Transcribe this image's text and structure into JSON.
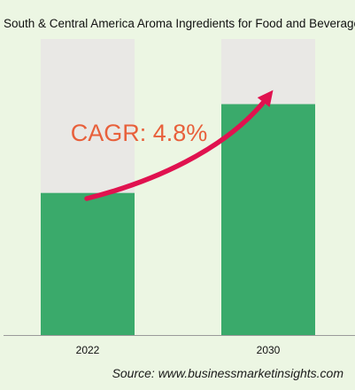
{
  "chart_data": {
    "type": "bar",
    "title": "South & Central America Aroma Ingredients for Food and Beverage",
    "categories": [
      "2022",
      "2030"
    ],
    "values": [
      48,
      78
    ],
    "ylim": [
      0,
      100
    ],
    "annotation": "CAGR: 4.8%",
    "source": "Source: www.businessmarketinsights.com",
    "grid": false,
    "legend": "none"
  },
  "colors": {
    "background": "#ecf6e3",
    "bar_fill": "#3aaa6b",
    "bar_track": "#e9e8e5",
    "arrow": "#e0124f",
    "cagr_text": "#e8603b"
  }
}
